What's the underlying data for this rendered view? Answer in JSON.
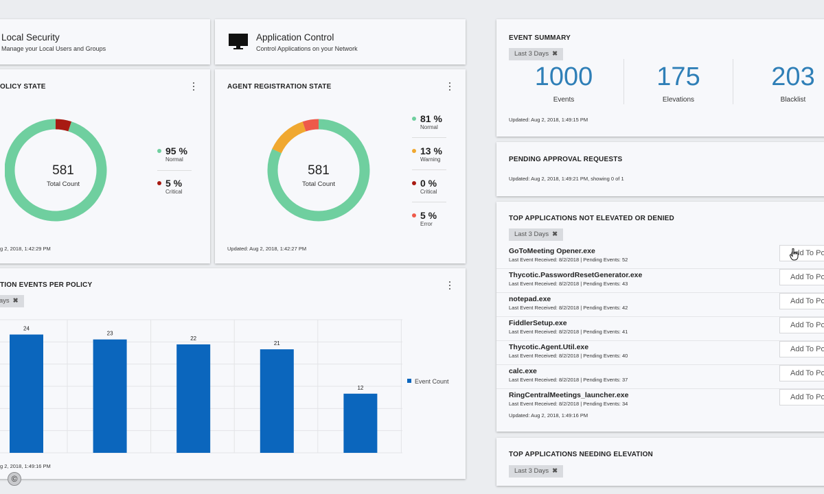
{
  "local_security": {
    "title": "Local Security",
    "subtitle": "Manage your Local Users and Groups"
  },
  "application_control": {
    "title": "Application Control",
    "subtitle": "Control Applications on your Network"
  },
  "policy_state": {
    "title": "OLICY STATE",
    "total": "581",
    "total_label": "Total Count",
    "legend": [
      {
        "pct": "95 %",
        "name": "Normal",
        "color": "#6fcf9f",
        "value": 95
      },
      {
        "pct": "5 %",
        "name": "Critical",
        "color": "#a81a12",
        "value": 5
      }
    ],
    "updated": "g 2, 2018, 1:42:29 PM"
  },
  "agent_registration": {
    "title": "AGENT REGISTRATION STATE",
    "total": "581",
    "total_label": "Total Count",
    "legend": [
      {
        "pct": "81 %",
        "name": "Normal",
        "color": "#6fcf9f",
        "value": 81
      },
      {
        "pct": "13 %",
        "name": "Warning",
        "color": "#f0a830",
        "value": 13
      },
      {
        "pct": "0 %",
        "name": "Critical",
        "color": "#a81a12",
        "value": 0
      },
      {
        "pct": "5 %",
        "name": "Error",
        "color": "#ee5a4a",
        "value": 5
      }
    ],
    "updated": "Updated: Aug 2, 2018, 1:42:27 PM"
  },
  "events_per_policy": {
    "title": "TION EVENTS PER POLICY",
    "chip": "Days",
    "legend_label": "Event Count",
    "updated": "g 2, 2018, 1:49:16 PM"
  },
  "chart_data": {
    "type": "bar",
    "categories": [
      "",
      "",
      "",
      "",
      ""
    ],
    "values": [
      24,
      23,
      22,
      21,
      12
    ],
    "series": [
      {
        "name": "Event Count",
        "values": [
          24,
          23,
          22,
          21,
          12
        ]
      }
    ],
    "title": "",
    "xlabel": "",
    "ylabel": "",
    "ylim": [
      0,
      27
    ],
    "grid": true,
    "legend": "right",
    "color": "#0b66bd"
  },
  "event_summary": {
    "title": "EVENT SUMMARY",
    "chip": "Last 3 Days",
    "stats": [
      {
        "value": "1000",
        "label": "Events"
      },
      {
        "value": "175",
        "label": "Elevations"
      },
      {
        "value": "203",
        "label": "Blacklist"
      }
    ],
    "updated": "Updated: Aug 2, 2018, 1:49:15 PM"
  },
  "pending_approval": {
    "title": "PENDING APPROVAL REQUESTS",
    "updated": "Updated: Aug 2, 2018, 1:49:21 PM, showing 0 of 1"
  },
  "top_apps": {
    "title": "TOP APPLICATIONS NOT ELEVATED OR DENIED",
    "chip": "Last 3 Days",
    "button_label": "Add To Po",
    "apps": [
      {
        "name": "GoToMeeting Opener.exe",
        "meta": "Last Event Received: 8/2/2018 | Pending Events: 52"
      },
      {
        "name": "Thycotic.PasswordResetGenerator.exe",
        "meta": "Last Event Received: 8/2/2018 | Pending Events: 43"
      },
      {
        "name": "notepad.exe",
        "meta": "Last Event Received: 8/2/2018 | Pending Events: 42"
      },
      {
        "name": "FiddlerSetup.exe",
        "meta": "Last Event Received: 8/2/2018 | Pending Events: 41"
      },
      {
        "name": "Thycotic.Agent.Util.exe",
        "meta": "Last Event Received: 8/2/2018 | Pending Events: 40"
      },
      {
        "name": "calc.exe",
        "meta": "Last Event Received: 8/2/2018 | Pending Events: 37"
      },
      {
        "name": "RingCentralMeetings_launcher.exe",
        "meta": "Last Event Received: 8/2/2018 | Pending Events: 34"
      }
    ],
    "updated": "Updated: Aug 2, 2018, 1:49:16 PM"
  },
  "top_needing": {
    "title": "TOP APPLICATIONS NEEDING ELEVATION",
    "chip": "Last 3 Days"
  },
  "icons": {
    "monitor": "monitor-icon",
    "close": "close-icon",
    "kebab": "kebab-menu-icon",
    "cursor": "hand-cursor-icon",
    "copyright": "copyright-icon"
  },
  "copyright_symbol": "©"
}
